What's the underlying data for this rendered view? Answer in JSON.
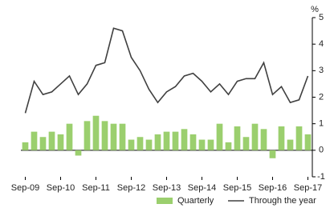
{
  "chart_data": {
    "type": "bar-line",
    "y_axis_label": "%",
    "categories": [
      "Sep-09",
      null,
      null,
      null,
      "Sep-10",
      null,
      null,
      null,
      "Sep-11",
      null,
      null,
      null,
      "Sep-12",
      null,
      null,
      null,
      "Sep-13",
      null,
      null,
      null,
      "Sep-14",
      null,
      null,
      null,
      "Sep-15",
      null,
      null,
      null,
      "Sep-16",
      null,
      null,
      null,
      "Sep-17"
    ],
    "series": [
      {
        "name": "Quarterly",
        "type": "bar",
        "color": "#9bcf6e",
        "values": [
          0.3,
          0.7,
          0.5,
          0.7,
          0.6,
          1.0,
          -0.2,
          1.1,
          1.3,
          1.1,
          1.0,
          1.0,
          0.4,
          0.5,
          0.4,
          0.6,
          0.7,
          0.7,
          0.8,
          0.6,
          0.4,
          0.4,
          1.0,
          0.3,
          0.9,
          0.5,
          1.0,
          0.8,
          -0.3,
          0.9,
          0.4,
          0.9,
          0.6
        ]
      },
      {
        "name": "Through the year",
        "type": "line",
        "color": "#404040",
        "values": [
          1.4,
          2.6,
          2.1,
          2.2,
          2.5,
          2.8,
          2.1,
          2.5,
          3.2,
          3.3,
          4.6,
          4.5,
          3.5,
          3.0,
          2.3,
          1.8,
          2.2,
          2.4,
          2.8,
          2.9,
          2.6,
          2.2,
          2.5,
          2.1,
          2.6,
          2.7,
          2.7,
          3.3,
          2.1,
          2.4,
          1.8,
          1.9,
          2.8
        ]
      }
    ],
    "ylim": [
      -1,
      5
    ],
    "yticks": [
      -1,
      0,
      1,
      2,
      3,
      4,
      5
    ],
    "grid": false,
    "legend": "bottom"
  }
}
